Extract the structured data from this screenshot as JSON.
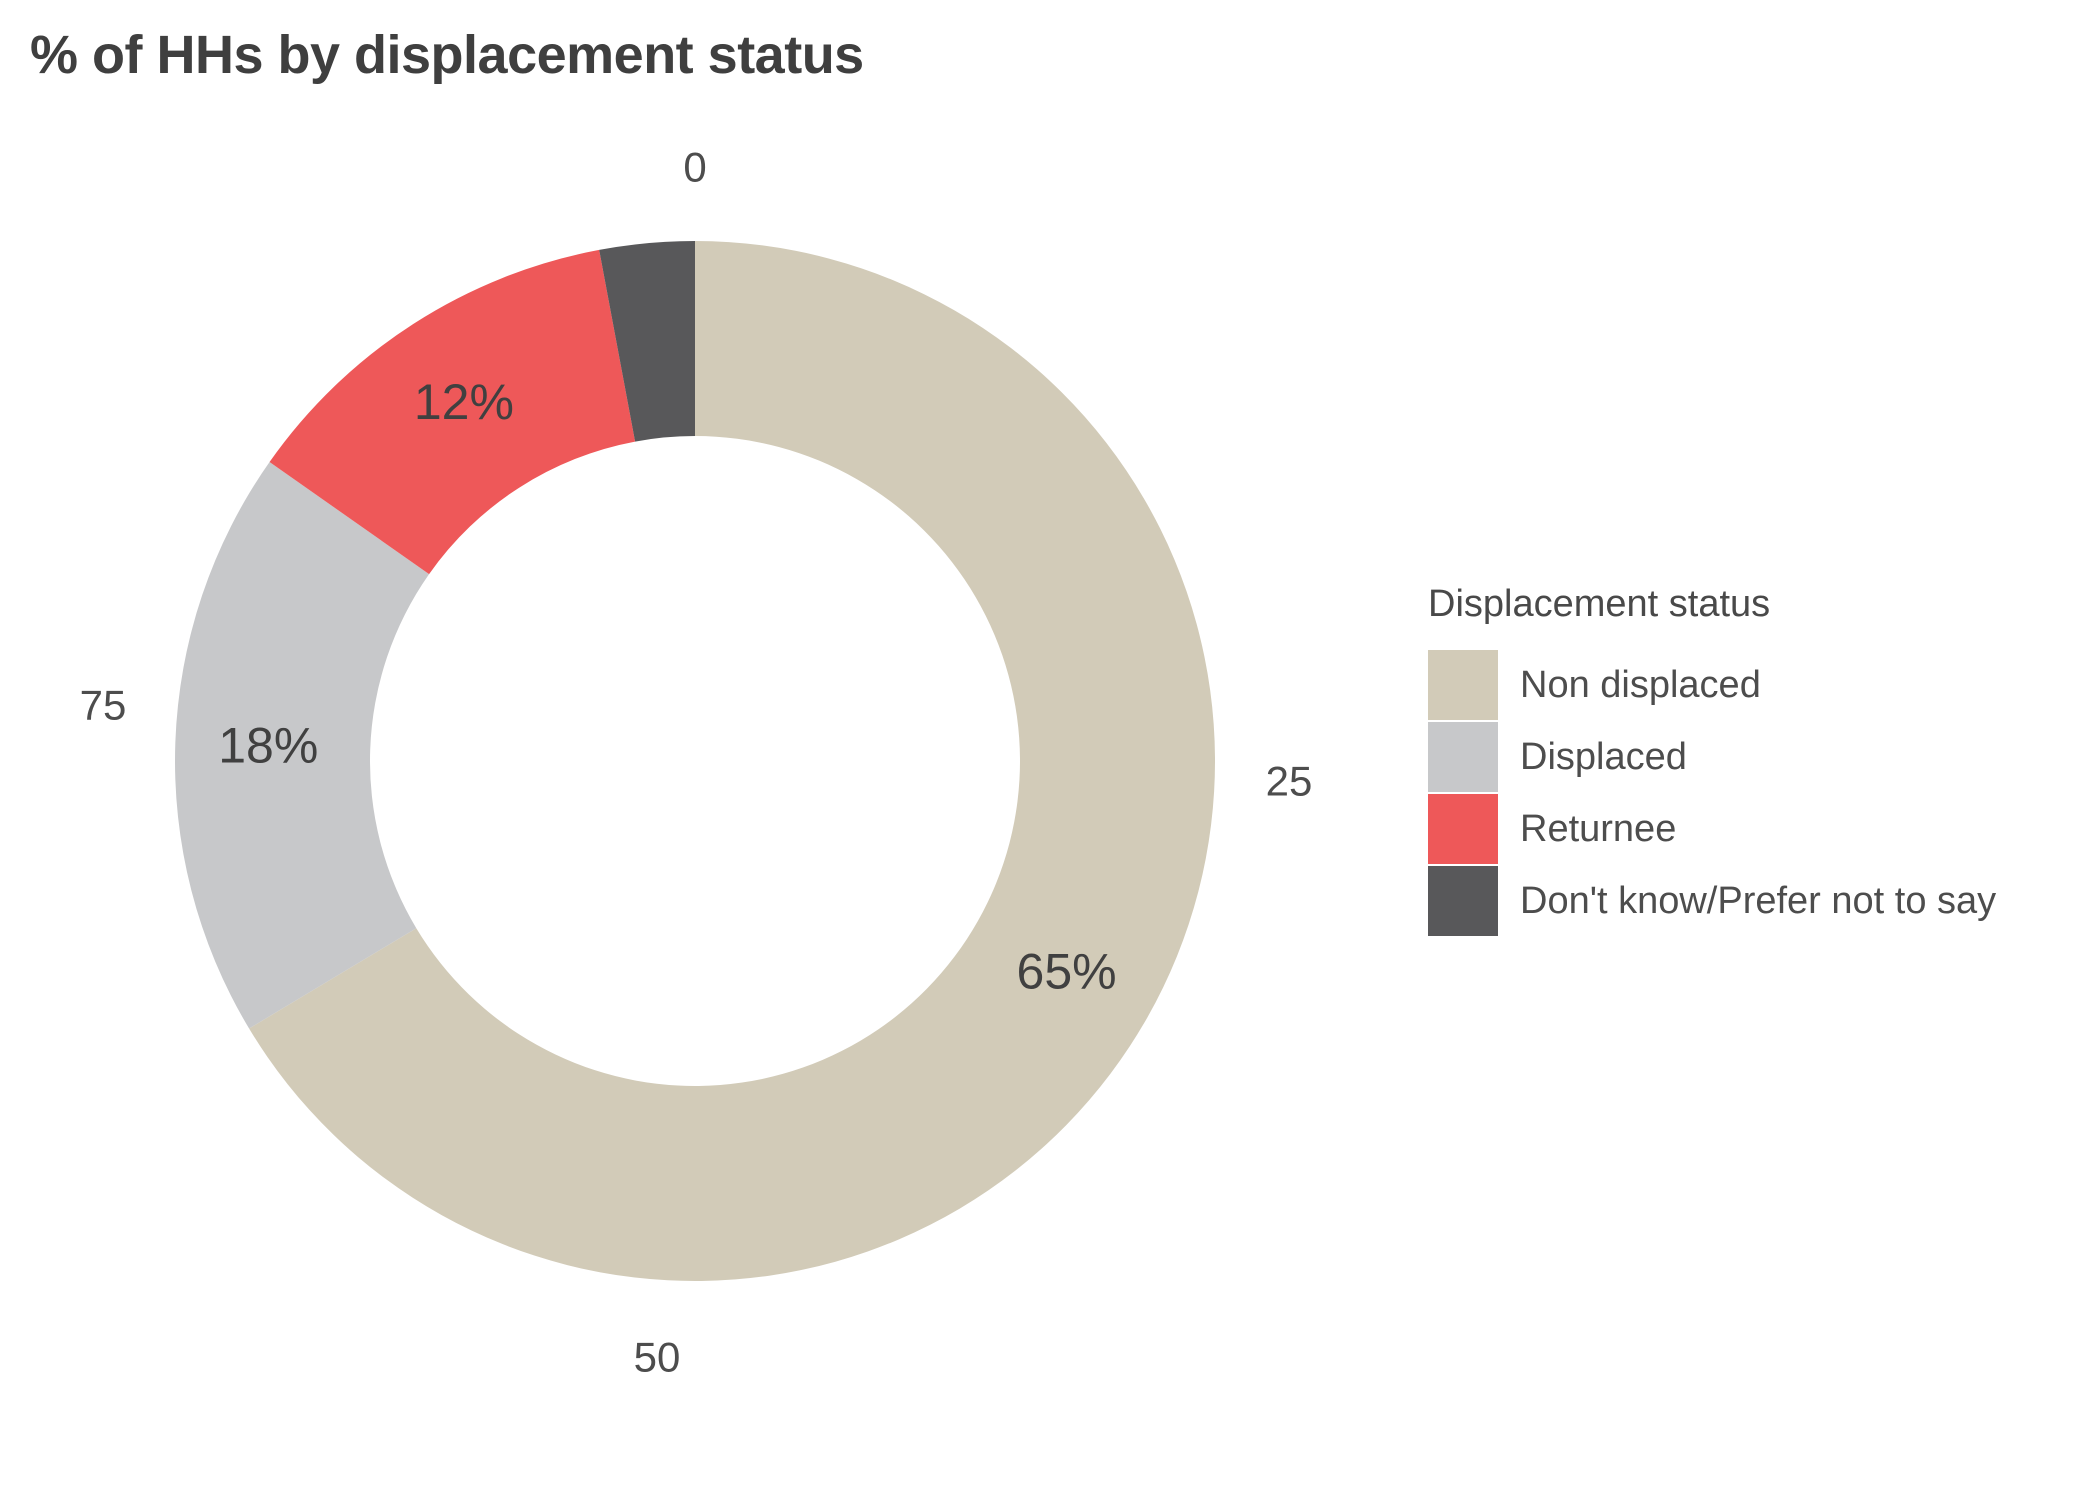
{
  "title": "% of HHs by displacement status",
  "chart_data": {
    "type": "pie",
    "variant": "donut",
    "title": "% of HHs by displacement status",
    "direction": "clockwise",
    "start_angle_deg": 0,
    "radial_axis_ticks": [
      "0",
      "25",
      "50",
      "75"
    ],
    "legend_title": "Displacement status",
    "legend_position": "right",
    "segments": [
      {
        "label": "Non displaced",
        "display_value": "65%",
        "arc_pct": 66.4,
        "color": "#D2CBB8"
      },
      {
        "label": "Displaced",
        "display_value": "18%",
        "arc_pct": 18.35,
        "color": "#C7C8CA"
      },
      {
        "label": "Returnee",
        "display_value": "12%",
        "arc_pct": 12.3,
        "color": "#EE5859"
      },
      {
        "label": "Don't know/Prefer not to say",
        "display_value": "",
        "arc_pct": 2.95,
        "color": "#58585A"
      }
    ]
  }
}
